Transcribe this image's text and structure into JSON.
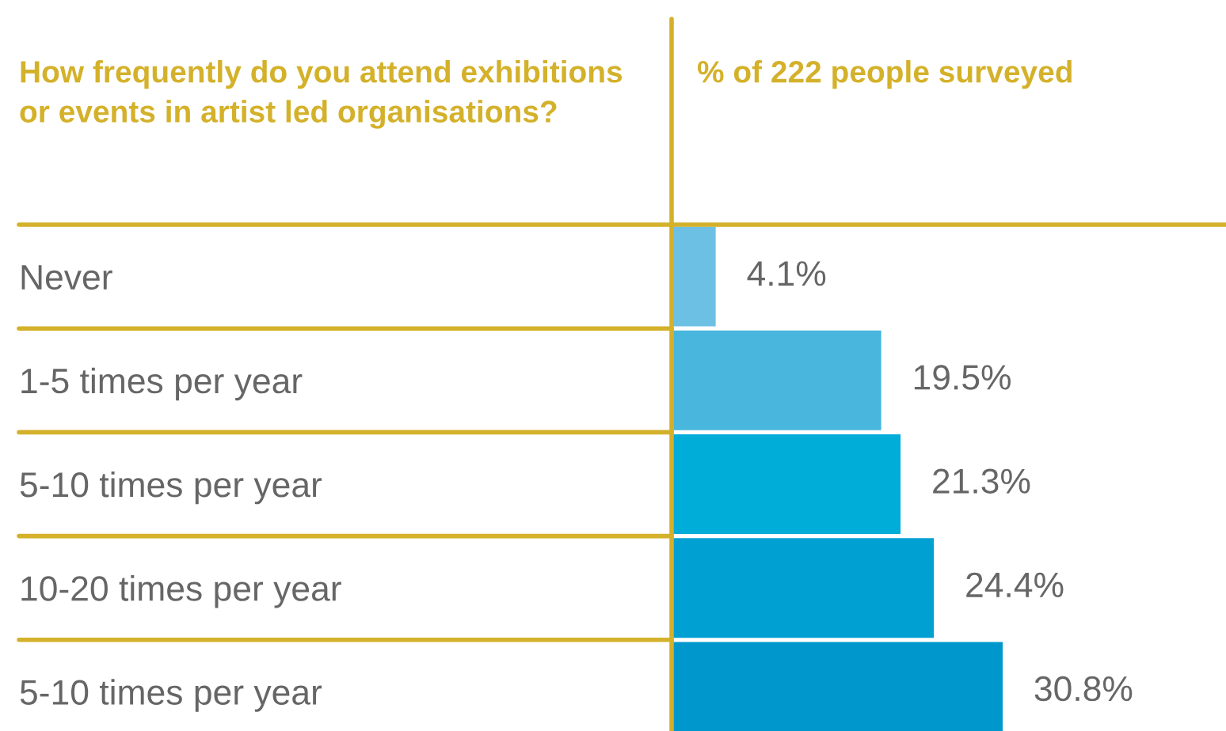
{
  "chart_data": {
    "type": "bar",
    "orientation": "horizontal",
    "ylabel": "How frequently do you attend exhibitions or events in artist led organisations?",
    "xlabel": "% of 222 people surveyed",
    "categories": [
      "Never",
      "1-5 times per year",
      "5-10 times per year",
      "10-20 times per year",
      "5-10 times per year"
    ],
    "values": [
      4.1,
      19.5,
      21.3,
      24.4,
      30.8
    ],
    "colors": [
      "#6cc0e4",
      "#48b6dd",
      "#00acd8",
      "#00a0d3",
      "#0098cc"
    ],
    "value_labels": [
      "4.1%",
      "19.5%",
      "21.3%",
      "24.4%",
      "30.8%"
    ],
    "grid": false,
    "legend": false
  }
}
